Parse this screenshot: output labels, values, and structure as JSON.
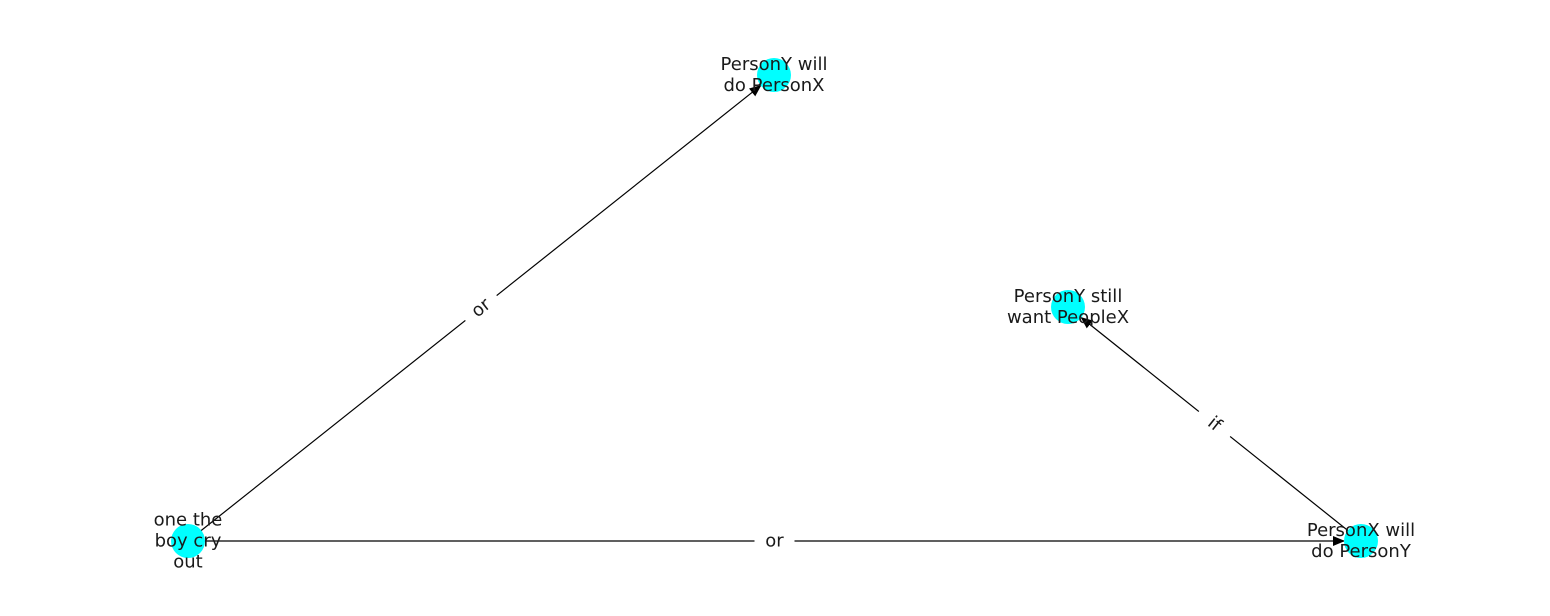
{
  "graph": {
    "nodes": [
      {
        "id": "n_personY_do_personX",
        "lines": [
          "PersonY will",
          "do PersonX"
        ]
      },
      {
        "id": "n_personY_want",
        "lines": [
          "PersonY still",
          "want PeopleX"
        ]
      },
      {
        "id": "n_boy_cry",
        "lines": [
          "one the",
          "boy cry",
          "out"
        ]
      },
      {
        "id": "n_personX_do_personY",
        "lines": [
          "PersonX will",
          "do PersonY"
        ]
      }
    ],
    "edges": [
      {
        "from": "n_boy_cry",
        "to": "n_personY_do_personX",
        "label": "or"
      },
      {
        "from": "n_boy_cry",
        "to": "n_personX_do_personY",
        "label": "or"
      },
      {
        "from": "n_personX_do_personY",
        "to": "n_personY_want",
        "label": "if"
      }
    ],
    "colors": {
      "node": "#00ffff",
      "edge": "#000000",
      "text": "#1a1a1a"
    }
  }
}
